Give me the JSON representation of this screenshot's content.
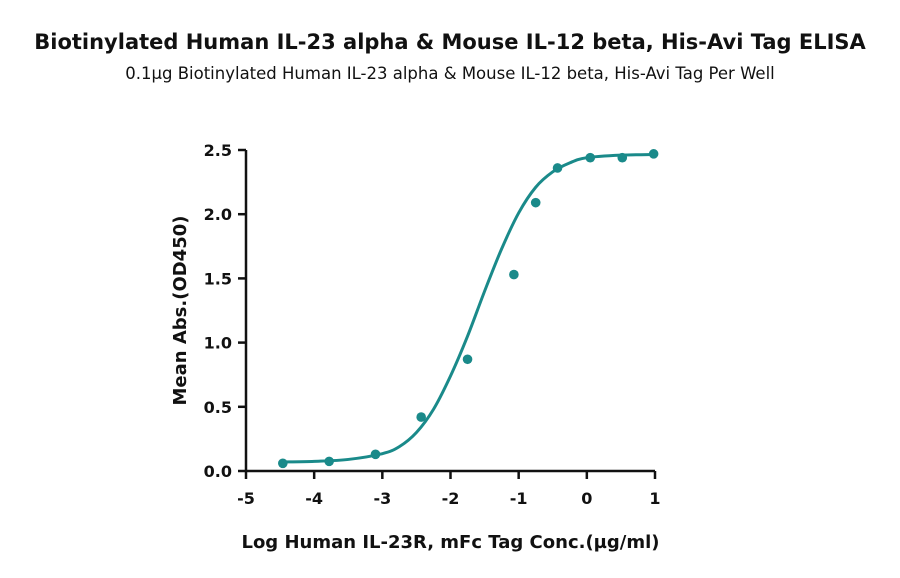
{
  "chart_data": {
    "type": "scatter",
    "title": "Biotinylated Human IL-23 alpha & Mouse IL-12 beta, His-Avi Tag ELISA",
    "subtitle": "0.1µg Biotinylated Human IL-23 alpha & Mouse IL-12 beta, His-Avi Tag Per Well",
    "xlabel": "Log Human IL-23R, mFc Tag Conc.(µg/ml)",
    "ylabel": "Mean Abs.(OD450)",
    "xlim": [
      -5,
      1
    ],
    "ylim": [
      0,
      2.5
    ],
    "x_ticks": [
      "-5",
      "-4",
      "-3",
      "-2",
      "-1",
      "0",
      "1"
    ],
    "y_ticks": [
      "0.0",
      "0.5",
      "1.0",
      "1.5",
      "2.0",
      "2.5"
    ],
    "grid": false,
    "colors": {
      "series": "#1a8a8a",
      "axis": "#111111"
    },
    "series": [
      {
        "points": [
          {
            "x": -4.46,
            "y": 0.06
          },
          {
            "x": -3.78,
            "y": 0.075
          },
          {
            "x": -3.1,
            "y": 0.13
          },
          {
            "x": -2.43,
            "y": 0.42
          },
          {
            "x": -1.75,
            "y": 0.87
          },
          {
            "x": -1.07,
            "y": 1.53
          },
          {
            "x": -0.75,
            "y": 2.09
          },
          {
            "x": -0.43,
            "y": 2.36
          },
          {
            "x": 0.05,
            "y": 2.44
          },
          {
            "x": 0.52,
            "y": 2.44
          },
          {
            "x": 0.98,
            "y": 2.47
          }
        ],
        "fit": "4PL",
        "fit_curve": [
          {
            "x": -4.46,
            "y": 0.07
          },
          {
            "x": -4.0,
            "y": 0.075
          },
          {
            "x": -3.5,
            "y": 0.09
          },
          {
            "x": -3.0,
            "y": 0.135
          },
          {
            "x": -2.75,
            "y": 0.19
          },
          {
            "x": -2.5,
            "y": 0.3
          },
          {
            "x": -2.25,
            "y": 0.48
          },
          {
            "x": -2.0,
            "y": 0.74
          },
          {
            "x": -1.75,
            "y": 1.05
          },
          {
            "x": -1.5,
            "y": 1.4
          },
          {
            "x": -1.25,
            "y": 1.73
          },
          {
            "x": -1.0,
            "y": 2.01
          },
          {
            "x": -0.75,
            "y": 2.21
          },
          {
            "x": -0.5,
            "y": 2.33
          },
          {
            "x": -0.25,
            "y": 2.4
          },
          {
            "x": 0.0,
            "y": 2.44
          },
          {
            "x": 0.5,
            "y": 2.46
          },
          {
            "x": 0.98,
            "y": 2.465
          }
        ]
      }
    ]
  }
}
